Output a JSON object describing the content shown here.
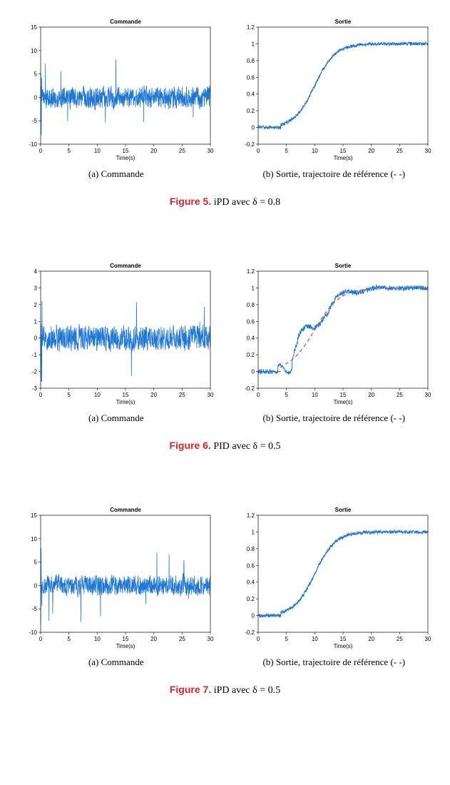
{
  "colors": {
    "series_blue": "#1f77d4",
    "series_red_dash": "#e03030",
    "axis": "#000000",
    "box": "#a0a0a0",
    "bg": "#ffffff"
  },
  "axis_label": "Time(s)",
  "chart_title_left": "Commande",
  "chart_title_right": "Sortie",
  "subcaption_left": "(a)  Commande",
  "subcaption_right": "(b) Sortie, trajectoire de référence (- -)",
  "figures": [
    {
      "fignum": "Figure 5.",
      "caption": " iPD avec δ = 0.8",
      "left": {
        "xlim": [
          0,
          30
        ],
        "xticks": [
          0,
          5,
          10,
          15,
          20,
          25,
          30
        ],
        "ylim": [
          -10,
          15
        ],
        "yticks": [
          -10,
          -5,
          0,
          5,
          10,
          15
        ],
        "noise": {
          "amp": 2.8,
          "bias": 0,
          "spike_amp": 8,
          "spike_prob": 0.012,
          "n": 1000,
          "seed": 5
        }
      },
      "right": {
        "xlim": [
          0,
          30
        ],
        "xticks": [
          0,
          5,
          10,
          15,
          20,
          25,
          30
        ],
        "ylim": [
          -0.2,
          1.2
        ],
        "yticks": [
          -0.2,
          0,
          0.2,
          0.4,
          0.6,
          0.8,
          1,
          1.2
        ],
        "ref": {
          "type": "sigmoid",
          "t0": 4,
          "k": 0.55,
          "yend": 1.0
        },
        "track": {
          "follow_ref": true,
          "noise_amp": 0.02,
          "seed": 105
        }
      }
    },
    {
      "fignum": "Figure 6.",
      "caption": " PID avec δ = 0.5",
      "left": {
        "xlim": [
          0,
          30
        ],
        "xticks": [
          0,
          5,
          10,
          15,
          20,
          25,
          30
        ],
        "ylim": [
          -3,
          4
        ],
        "yticks": [
          -3,
          -2,
          -1,
          0,
          1,
          2,
          3,
          4
        ],
        "noise": {
          "amp": 0.9,
          "bias": 0,
          "spike_amp": 2.2,
          "spike_prob": 0.01,
          "n": 900,
          "seed": 6
        }
      },
      "right": {
        "xlim": [
          0,
          30
        ],
        "xticks": [
          0,
          5,
          10,
          15,
          20,
          25,
          30
        ],
        "ylim": [
          -0.2,
          1.2
        ],
        "yticks": [
          -0.2,
          0,
          0.2,
          0.4,
          0.6,
          0.8,
          1,
          1.2
        ],
        "ref": {
          "type": "sigmoid",
          "t0": 4,
          "k": 0.45,
          "yend": 1.0
        },
        "track": {
          "type": "pid_overshoot",
          "noise_amp": 0.03,
          "seed": 106
        }
      }
    },
    {
      "fignum": "Figure 7.",
      "caption": " iPD avec δ = 0.5",
      "left": {
        "xlim": [
          0,
          30
        ],
        "xticks": [
          0,
          5,
          10,
          15,
          20,
          25,
          30
        ],
        "ylim": [
          -10,
          15
        ],
        "yticks": [
          -10,
          -5,
          0,
          5,
          10,
          15
        ],
        "noise": {
          "amp": 2.6,
          "bias": 0,
          "spike_amp": 7,
          "spike_prob": 0.011,
          "n": 1000,
          "seed": 7
        }
      },
      "right": {
        "xlim": [
          0,
          30
        ],
        "xticks": [
          0,
          5,
          10,
          15,
          20,
          25,
          30
        ],
        "ylim": [
          -0.2,
          1.2
        ],
        "yticks": [
          -0.2,
          0,
          0.2,
          0.4,
          0.6,
          0.8,
          1,
          1.2
        ],
        "ref": {
          "type": "sigmoid",
          "t0": 4,
          "k": 0.55,
          "yend": 1.0
        },
        "track": {
          "follow_ref": true,
          "noise_amp": 0.02,
          "seed": 107
        }
      }
    }
  ]
}
